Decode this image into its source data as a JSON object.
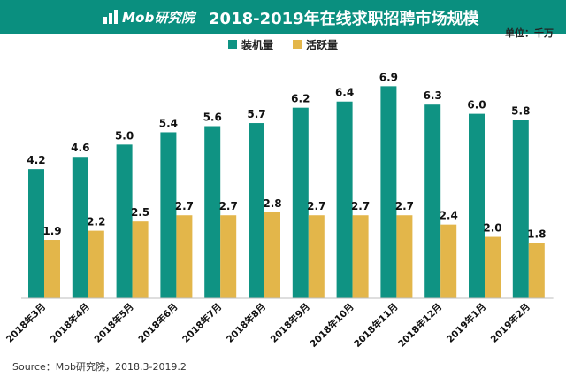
{
  "header": {
    "brand": "Mob研究院",
    "title": "2018-2019年在线求职招聘市场规模"
  },
  "unit_label": "单位：千万",
  "source": "Source：Mob研究院，2018.3-2019.2",
  "colors": {
    "header_bg": "#0a8f7f",
    "installed": "#0f9383",
    "active": "#e3b64a"
  },
  "chart_data": {
    "type": "bar",
    "title": "2018-2019年在线求职招聘市场规模",
    "categories": [
      "2018年3月",
      "2018年4月",
      "2018年5月",
      "2018年6月",
      "2018年7月",
      "2018年8月",
      "2018年9月",
      "2018年10月",
      "2018年11月",
      "2018年12月",
      "2019年1月",
      "2019年2月"
    ],
    "series": [
      {
        "name": "装机量",
        "values": [
          4.2,
          4.6,
          5.0,
          5.4,
          5.6,
          5.7,
          6.2,
          6.4,
          6.9,
          6.3,
          6.0,
          5.8
        ]
      },
      {
        "name": "活跃量",
        "values": [
          1.9,
          2.2,
          2.5,
          2.7,
          2.7,
          2.8,
          2.7,
          2.7,
          2.7,
          2.4,
          2.0,
          1.8
        ]
      }
    ],
    "ylim": [
      0,
      7.4
    ],
    "grid": false,
    "legend_position": "top-center",
    "value_labels": true
  }
}
